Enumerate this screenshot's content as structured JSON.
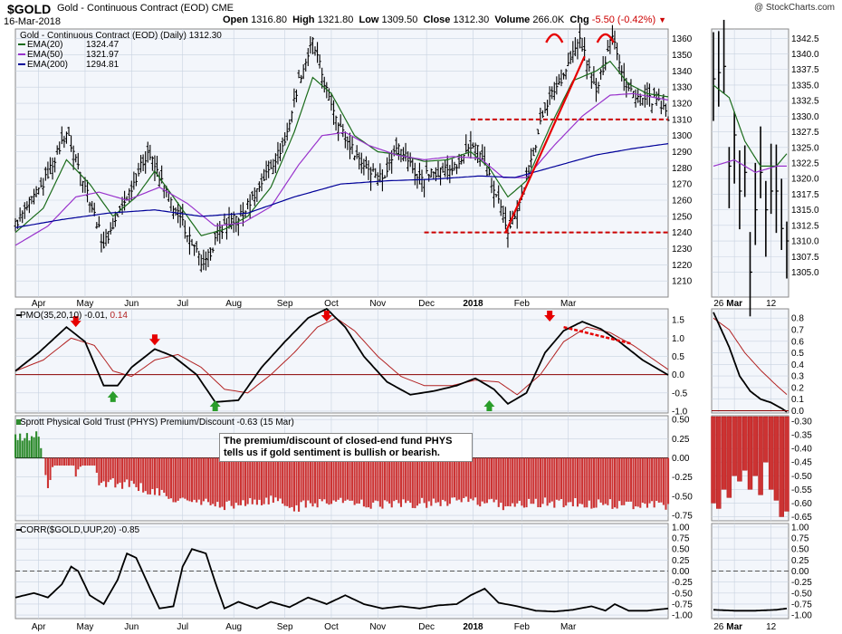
{
  "header": {
    "symbol": "$GOLD",
    "description": "Gold - Continuous Contract (EOD)",
    "exchange": "CME",
    "date": "16-Mar-2018",
    "open_label": "Open",
    "open": "1316.80",
    "high_label": "High",
    "high": "1321.80",
    "low_label": "Low",
    "low": "1309.50",
    "close_label": "Close",
    "close": "1312.30",
    "volume_label": "Volume",
    "volume": "266.0K",
    "chg_label": "Chg",
    "chg": "-5.50 (-0.42%)",
    "brand": "@ StockCharts.com"
  },
  "colors": {
    "up": "#000000",
    "down": "#000000",
    "ema20": "#1a6b1a",
    "ema50": "#9933cc",
    "ema200": "#000099",
    "pmo": "#000000",
    "pmo_signal": "#b22222",
    "prem_pos": "#2e8b2e",
    "prem_neg": "#cc3333",
    "annot_red": "#e60000",
    "annot_green": "#2a9d2a",
    "panel_bg": "#ffffff",
    "plot_bg": "#f3f6fb",
    "grid": "#c8d2e0"
  },
  "chart_data": [
    {
      "type": "ohlc",
      "title": "Gold - Continuous Contract (EOD) (Daily) 1312.30",
      "legend": [
        {
          "name": "EMA(20)",
          "value": "1324.47"
        },
        {
          "name": "EMA(50)",
          "value": "1321.97"
        },
        {
          "name": "EMA(200)",
          "value": "1294.81"
        }
      ],
      "ylim": [
        1200,
        1366
      ],
      "yticks": [
        1210,
        1220,
        1230,
        1240,
        1250,
        1260,
        1270,
        1280,
        1290,
        1300,
        1310,
        1320,
        1330,
        1340,
        1350,
        1360
      ],
      "xlabels": [
        "Apr",
        "May",
        "Jun",
        "Jul",
        "Aug",
        "Sep",
        "Oct",
        "Nov",
        "Dec",
        "2018",
        "Feb",
        "Mar"
      ],
      "close_path": [
        [
          0,
          1245
        ],
        [
          12,
          1270
        ],
        [
          22,
          1302
        ],
        [
          30,
          1270
        ],
        [
          38,
          1232
        ],
        [
          48,
          1262
        ],
        [
          57,
          1290
        ],
        [
          66,
          1262
        ],
        [
          74,
          1240
        ],
        [
          81,
          1218
        ],
        [
          88,
          1242
        ],
        [
          98,
          1252
        ],
        [
          108,
          1276
        ],
        [
          116,
          1296
        ],
        [
          122,
          1334
        ],
        [
          128,
          1358
        ],
        [
          134,
          1328
        ],
        [
          142,
          1298
        ],
        [
          150,
          1282
        ],
        [
          158,
          1274
        ],
        [
          165,
          1296
        ],
        [
          173,
          1274
        ],
        [
          182,
          1278
        ],
        [
          190,
          1280
        ],
        [
          198,
          1296
        ],
        [
          205,
          1270
        ],
        [
          212,
          1242
        ],
        [
          218,
          1262
        ],
        [
          228,
          1318
        ],
        [
          236,
          1338
        ],
        [
          243,
          1360
        ],
        [
          250,
          1326
        ],
        [
          257,
          1364
        ],
        [
          263,
          1330
        ],
        [
          270,
          1322
        ],
        [
          276,
          1322
        ],
        [
          281,
          1312
        ]
      ],
      "ema20_path": [
        [
          0,
          1240
        ],
        [
          12,
          1255
        ],
        [
          22,
          1285
        ],
        [
          32,
          1270
        ],
        [
          42,
          1250
        ],
        [
          52,
          1262
        ],
        [
          60,
          1278
        ],
        [
          70,
          1258
        ],
        [
          80,
          1238
        ],
        [
          90,
          1242
        ],
        [
          100,
          1250
        ],
        [
          110,
          1268
        ],
        [
          120,
          1302
        ],
        [
          128,
          1336
        ],
        [
          136,
          1326
        ],
        [
          146,
          1300
        ],
        [
          156,
          1290
        ],
        [
          166,
          1288
        ],
        [
          176,
          1284
        ],
        [
          186,
          1285
        ],
        [
          196,
          1290
        ],
        [
          204,
          1280
        ],
        [
          212,
          1262
        ],
        [
          220,
          1272
        ],
        [
          230,
          1305
        ],
        [
          240,
          1334
        ],
        [
          250,
          1340
        ],
        [
          256,
          1346
        ],
        [
          264,
          1332
        ],
        [
          272,
          1326
        ],
        [
          281,
          1324
        ]
      ],
      "ema50_path": [
        [
          0,
          1232
        ],
        [
          14,
          1244
        ],
        [
          26,
          1262
        ],
        [
          36,
          1265
        ],
        [
          48,
          1260
        ],
        [
          62,
          1268
        ],
        [
          74,
          1258
        ],
        [
          86,
          1244
        ],
        [
          98,
          1246
        ],
        [
          110,
          1256
        ],
        [
          122,
          1282
        ],
        [
          132,
          1300
        ],
        [
          142,
          1302
        ],
        [
          152,
          1294
        ],
        [
          164,
          1288
        ],
        [
          176,
          1285
        ],
        [
          188,
          1287
        ],
        [
          200,
          1286
        ],
        [
          210,
          1274
        ],
        [
          220,
          1274
        ],
        [
          232,
          1294
        ],
        [
          244,
          1312
        ],
        [
          256,
          1325
        ],
        [
          266,
          1326
        ],
        [
          281,
          1322
        ]
      ],
      "ema200_path": [
        [
          0,
          1243
        ],
        [
          20,
          1248
        ],
        [
          40,
          1252
        ],
        [
          60,
          1254
        ],
        [
          80,
          1250
        ],
        [
          100,
          1252
        ],
        [
          120,
          1262
        ],
        [
          140,
          1270
        ],
        [
          160,
          1272
        ],
        [
          180,
          1273
        ],
        [
          200,
          1275
        ],
        [
          215,
          1274
        ],
        [
          230,
          1280
        ],
        [
          250,
          1288
        ],
        [
          266,
          1292
        ],
        [
          281,
          1295
        ]
      ],
      "zoom_close_path": [
        [
          0,
          1336
        ],
        [
          2,
          1338
        ],
        [
          3,
          1322
        ],
        [
          4,
          1327
        ],
        [
          5,
          1318
        ],
        [
          6,
          1321
        ],
        [
          7,
          1305
        ],
        [
          8,
          1315
        ],
        [
          9,
          1321
        ],
        [
          10,
          1315
        ],
        [
          11,
          1318
        ],
        [
          12,
          1318
        ],
        [
          13,
          1312
        ],
        [
          14,
          1310
        ]
      ],
      "zoom_ema20_path": [
        [
          0,
          1335
        ],
        [
          3,
          1333
        ],
        [
          6,
          1326
        ],
        [
          9,
          1322
        ],
        [
          12,
          1322
        ],
        [
          14,
          1324
        ]
      ],
      "zoom_ema50_path": [
        [
          0,
          1322
        ],
        [
          4,
          1323
        ],
        [
          8,
          1321
        ],
        [
          12,
          1322
        ],
        [
          14,
          1322
        ]
      ],
      "zoom_ylim": [
        1301,
        1344
      ],
      "zoom_yticks": [
        1305.0,
        1307.5,
        1310.0,
        1312.5,
        1315.0,
        1317.5,
        1320.0,
        1322.5,
        1325.0,
        1327.5,
        1330.0,
        1332.5,
        1335.0,
        1337.5,
        1340.0,
        1342.5
      ],
      "zoom_xlabels": [
        "26",
        "Mar",
        "12"
      ],
      "support_lines": [
        1310,
        1240
      ],
      "trendline": [
        [
          211,
          1240
        ],
        [
          245,
          1349
        ]
      ],
      "top_arcs": [
        [
          232,
          1361
        ],
        [
          254,
          1361
        ]
      ]
    },
    {
      "type": "line",
      "title_prefix": "PMO(35,20,10)",
      "value": "-0.01",
      "signal_value": "0.14",
      "ylim": [
        -1.05,
        1.8
      ],
      "yticks": [
        -1.0,
        -0.5,
        0.0,
        0.5,
        1.0,
        1.5
      ],
      "zoom_ylim": [
        -0.02,
        0.88
      ],
      "zoom_yticks": [
        0.0,
        0.1,
        0.2,
        0.3,
        0.4,
        0.5,
        0.6,
        0.7,
        0.8
      ],
      "pmo_path": [
        [
          0,
          0.1
        ],
        [
          10,
          0.6
        ],
        [
          22,
          1.3
        ],
        [
          30,
          0.9
        ],
        [
          38,
          -0.3
        ],
        [
          44,
          -0.3
        ],
        [
          50,
          0.2
        ],
        [
          60,
          0.7
        ],
        [
          68,
          0.5
        ],
        [
          78,
          0.0
        ],
        [
          86,
          -0.75
        ],
        [
          96,
          -0.7
        ],
        [
          106,
          0.2
        ],
        [
          116,
          0.9
        ],
        [
          126,
          1.55
        ],
        [
          134,
          1.8
        ],
        [
          142,
          1.3
        ],
        [
          150,
          0.5
        ],
        [
          160,
          -0.2
        ],
        [
          170,
          -0.55
        ],
        [
          180,
          -0.45
        ],
        [
          190,
          -0.3
        ],
        [
          198,
          -0.1
        ],
        [
          206,
          -0.4
        ],
        [
          212,
          -0.8
        ],
        [
          220,
          -0.5
        ],
        [
          228,
          0.6
        ],
        [
          236,
          1.2
        ],
        [
          244,
          1.45
        ],
        [
          252,
          1.25
        ],
        [
          260,
          0.9
        ],
        [
          270,
          0.4
        ],
        [
          281,
          -0.01
        ]
      ],
      "signal_path": [
        [
          0,
          0.1
        ],
        [
          12,
          0.4
        ],
        [
          24,
          1.0
        ],
        [
          34,
          0.8
        ],
        [
          42,
          0.1
        ],
        [
          50,
          -0.05
        ],
        [
          60,
          0.4
        ],
        [
          70,
          0.55
        ],
        [
          80,
          0.2
        ],
        [
          90,
          -0.4
        ],
        [
          100,
          -0.5
        ],
        [
          110,
          0.0
        ],
        [
          120,
          0.6
        ],
        [
          130,
          1.3
        ],
        [
          138,
          1.55
        ],
        [
          146,
          1.2
        ],
        [
          156,
          0.5
        ],
        [
          166,
          -0.05
        ],
        [
          176,
          -0.3
        ],
        [
          188,
          -0.3
        ],
        [
          198,
          -0.15
        ],
        [
          208,
          -0.2
        ],
        [
          216,
          -0.55
        ],
        [
          226,
          0.0
        ],
        [
          236,
          0.9
        ],
        [
          246,
          1.3
        ],
        [
          256,
          1.15
        ],
        [
          266,
          0.8
        ],
        [
          281,
          0.14
        ]
      ],
      "zoom_pmo_path": [
        [
          0,
          0.85
        ],
        [
          3,
          0.55
        ],
        [
          5,
          0.3
        ],
        [
          7,
          0.17
        ],
        [
          9,
          0.1
        ],
        [
          11,
          0.07
        ],
        [
          13,
          0.02
        ],
        [
          14,
          -0.01
        ]
      ],
      "zoom_signal_path": [
        [
          0,
          0.8
        ],
        [
          3,
          0.7
        ],
        [
          6,
          0.5
        ],
        [
          9,
          0.35
        ],
        [
          12,
          0.22
        ],
        [
          14,
          0.14
        ]
      ],
      "sell_arrows": [
        [
          26,
          1.6
        ],
        [
          60,
          1.1
        ],
        [
          134,
          2.0
        ],
        [
          230,
          1.8
        ]
      ],
      "buy_arrows": [
        [
          42,
          -0.75
        ],
        [
          86,
          -1.15
        ],
        [
          204,
          -1.1
        ]
      ],
      "dash_trend": [
        [
          236,
          1.3
        ],
        [
          265,
          0.85
        ]
      ]
    },
    {
      "type": "bar",
      "title": "Sprott Physical Gold Trust (PHYS) Premium/Discount -0.63 (15 Mar)",
      "ylim": [
        -0.82,
        0.55
      ],
      "yticks": [
        -0.75,
        -0.5,
        -0.25,
        0.0,
        0.25,
        0.5
      ],
      "zoom_ylim": [
        -0.665,
        -0.28
      ],
      "zoom_yticks": [
        -0.3,
        -0.35,
        -0.4,
        -0.45,
        -0.5,
        -0.55,
        -0.6,
        -0.65
      ],
      "profile": [
        [
          0,
          0.25
        ],
        [
          10,
          0.3
        ],
        [
          14,
          -0.35
        ],
        [
          20,
          0.25
        ],
        [
          26,
          -0.25
        ],
        [
          32,
          0.3
        ],
        [
          36,
          -0.3
        ],
        [
          50,
          -0.35
        ],
        [
          70,
          -0.55
        ],
        [
          90,
          -0.62
        ],
        [
          110,
          -0.55
        ],
        [
          120,
          -0.65
        ],
        [
          135,
          -0.55
        ],
        [
          150,
          -0.6
        ],
        [
          170,
          -0.6
        ],
        [
          190,
          -0.55
        ],
        [
          210,
          -0.62
        ],
        [
          230,
          -0.58
        ],
        [
          250,
          -0.6
        ],
        [
          270,
          -0.6
        ],
        [
          281,
          -0.63
        ]
      ],
      "zoom_values": [
        -0.6,
        -0.62,
        -0.55,
        -0.58,
        -0.5,
        -0.52,
        -0.48,
        -0.55,
        -0.5,
        -0.57,
        -0.45,
        -0.55,
        -0.59,
        -0.65,
        -0.63
      ],
      "annotation": "The premium/discount of closed-end fund PHYS tells us if gold sentiment is bullish or bearish."
    },
    {
      "type": "line",
      "title": "CORR($GOLD,UUP,20) -0.85",
      "ylim": [
        -1.08,
        1.08
      ],
      "yticks": [
        -1.0,
        -0.75,
        -0.5,
        -0.25,
        0.0,
        0.25,
        0.5,
        0.75,
        1.0
      ],
      "zoom_ylim": [
        -1.08,
        1.08
      ],
      "zoom_yticks": [
        -1.0,
        -0.75,
        -0.5,
        -0.25,
        0.0,
        0.25,
        0.5,
        0.75,
        1.0
      ],
      "corr_path": [
        [
          0,
          -0.6
        ],
        [
          8,
          -0.5
        ],
        [
          14,
          -0.6
        ],
        [
          20,
          -0.3
        ],
        [
          24,
          0.1
        ],
        [
          27,
          0.0
        ],
        [
          32,
          -0.55
        ],
        [
          38,
          -0.75
        ],
        [
          44,
          -0.2
        ],
        [
          48,
          0.4
        ],
        [
          52,
          0.3
        ],
        [
          58,
          -0.4
        ],
        [
          62,
          -0.85
        ],
        [
          68,
          -0.8
        ],
        [
          72,
          0.1
        ],
        [
          76,
          0.5
        ],
        [
          82,
          0.4
        ],
        [
          86,
          -0.25
        ],
        [
          90,
          -0.85
        ],
        [
          96,
          -0.7
        ],
        [
          104,
          -0.85
        ],
        [
          110,
          -0.7
        ],
        [
          118,
          -0.82
        ],
        [
          126,
          -0.6
        ],
        [
          134,
          -0.75
        ],
        [
          142,
          -0.55
        ],
        [
          150,
          -0.75
        ],
        [
          158,
          -0.85
        ],
        [
          166,
          -0.8
        ],
        [
          174,
          -0.85
        ],
        [
          182,
          -0.78
        ],
        [
          190,
          -0.75
        ],
        [
          196,
          -0.55
        ],
        [
          202,
          -0.4
        ],
        [
          208,
          -0.72
        ],
        [
          216,
          -0.8
        ],
        [
          224,
          -0.9
        ],
        [
          232,
          -0.92
        ],
        [
          240,
          -0.88
        ],
        [
          248,
          -0.8
        ],
        [
          254,
          -0.9
        ],
        [
          258,
          -0.75
        ],
        [
          264,
          -0.9
        ],
        [
          272,
          -0.9
        ],
        [
          281,
          -0.85
        ]
      ],
      "zoom_corr_path": [
        [
          0,
          -0.88
        ],
        [
          4,
          -0.9
        ],
        [
          8,
          -0.9
        ],
        [
          12,
          -0.88
        ],
        [
          14,
          -0.85
        ]
      ]
    }
  ]
}
